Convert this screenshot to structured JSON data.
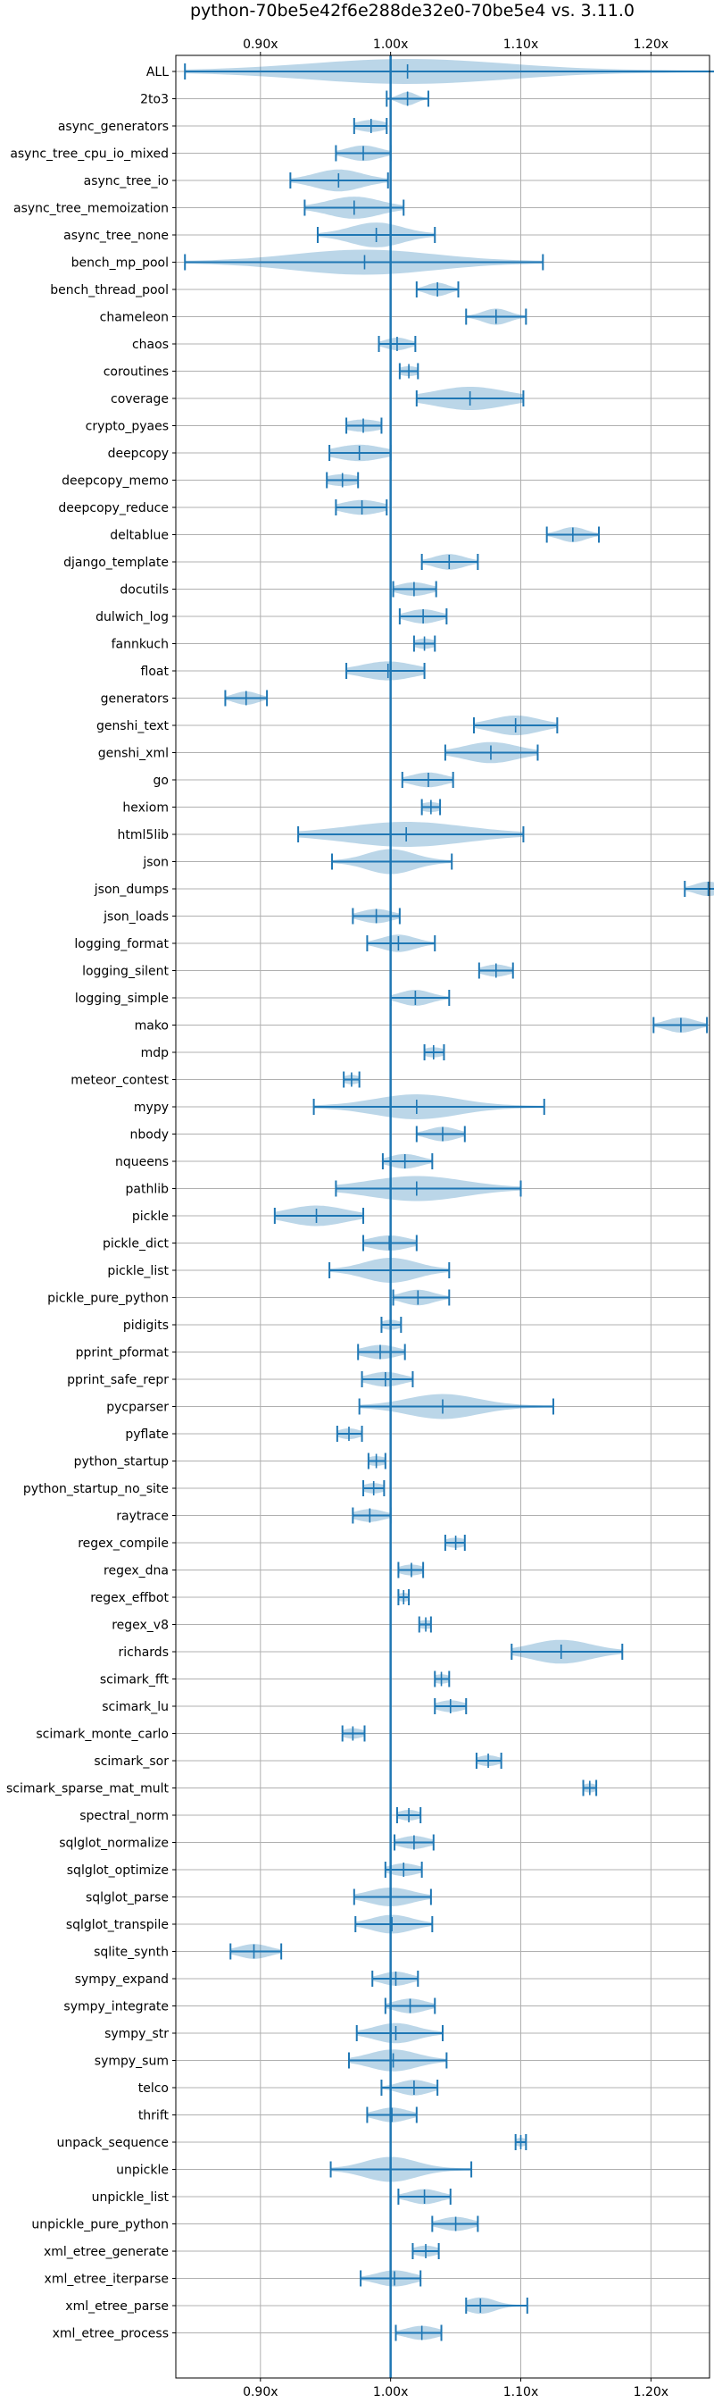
{
  "chart_data": {
    "type": "violin",
    "title": "python-70be5e42f6e288de32e0-70be5e4 vs. 3.11.0",
    "orientation": "horizontal",
    "xlim": [
      0.835,
      1.245
    ],
    "xticks": [
      0.9,
      1.0,
      1.1,
      1.2
    ],
    "xtick_labels": [
      "0.90x",
      "1.00x",
      "1.10x",
      "1.20x"
    ],
    "reference_line": 1.0,
    "grid": true,
    "colors": {
      "violin": "#1f77b4",
      "line": "#1f77b4",
      "grid": "#b0b0b0"
    },
    "series": [
      {
        "name": "ALL",
        "min": 0.842,
        "max": 1.262,
        "mean": 1.013,
        "width": 0.014
      },
      {
        "name": "2to3",
        "min": 0.997,
        "max": 1.029,
        "mean": 1.013,
        "width": 0.007
      },
      {
        "name": "async_generators",
        "min": 0.972,
        "max": 0.997,
        "mean": 0.985,
        "width": 0.012
      },
      {
        "name": "async_tree_cpu_io_mixed",
        "min": 0.958,
        "max": 1.0,
        "mean": 0.979,
        "width": 0.014
      },
      {
        "name": "async_tree_io",
        "min": 0.923,
        "max": 0.998,
        "mean": 0.96,
        "width": 0.02
      },
      {
        "name": "async_tree_memoization",
        "min": 0.934,
        "max": 1.01,
        "mean": 0.972,
        "width": 0.022
      },
      {
        "name": "async_tree_none",
        "min": 0.944,
        "max": 1.034,
        "mean": 0.989,
        "width": 0.022
      },
      {
        "name": "bench_mp_pool",
        "min": 0.842,
        "max": 1.117,
        "mean": 0.98,
        "width": 0.06
      },
      {
        "name": "bench_thread_pool",
        "min": 1.02,
        "max": 1.052,
        "mean": 1.036,
        "width": 0.009
      },
      {
        "name": "chameleon",
        "min": 1.058,
        "max": 1.104,
        "mean": 1.081,
        "width": 0.011
      },
      {
        "name": "chaos",
        "min": 0.991,
        "max": 1.019,
        "mean": 1.005,
        "width": 0.01
      },
      {
        "name": "coroutines",
        "min": 1.007,
        "max": 1.021,
        "mean": 1.014,
        "width": 0.009
      },
      {
        "name": "coverage",
        "min": 1.02,
        "max": 1.102,
        "mean": 1.061,
        "width": 0.03
      },
      {
        "name": "crypto_pyaes",
        "min": 0.966,
        "max": 0.993,
        "mean": 0.979,
        "width": 0.015
      },
      {
        "name": "deepcopy",
        "min": 0.953,
        "max": 1.0,
        "mean": 0.976,
        "width": 0.02
      },
      {
        "name": "deepcopy_memo",
        "min": 0.951,
        "max": 0.975,
        "mean": 0.963,
        "width": 0.014
      },
      {
        "name": "deepcopy_reduce",
        "min": 0.958,
        "max": 0.997,
        "mean": 0.978,
        "width": 0.016
      },
      {
        "name": "deltablue",
        "min": 1.12,
        "max": 1.16,
        "mean": 1.14,
        "width": 0.011
      },
      {
        "name": "django_template",
        "min": 1.024,
        "max": 1.067,
        "mean": 1.045,
        "width": 0.013
      },
      {
        "name": "docutils",
        "min": 1.002,
        "max": 1.035,
        "mean": 1.018,
        "width": 0.013
      },
      {
        "name": "dulwich_log",
        "min": 1.007,
        "max": 1.043,
        "mean": 1.025,
        "width": 0.013
      },
      {
        "name": "fannkuch",
        "min": 1.018,
        "max": 1.034,
        "mean": 1.026,
        "width": 0.009
      },
      {
        "name": "float",
        "min": 0.966,
        "max": 1.026,
        "mean": 0.998,
        "width": 0.022
      },
      {
        "name": "generators",
        "min": 0.873,
        "max": 0.905,
        "mean": 0.889,
        "width": 0.01
      },
      {
        "name": "genshi_text",
        "min": 1.064,
        "max": 1.128,
        "mean": 1.096,
        "width": 0.02
      },
      {
        "name": "genshi_xml",
        "min": 1.042,
        "max": 1.113,
        "mean": 1.077,
        "width": 0.022
      },
      {
        "name": "go",
        "min": 1.009,
        "max": 1.048,
        "mean": 1.029,
        "width": 0.014
      },
      {
        "name": "hexiom",
        "min": 1.024,
        "max": 1.038,
        "mean": 1.031,
        "width": 0.009
      },
      {
        "name": "html5lib",
        "min": 0.929,
        "max": 1.102,
        "mean": 1.012,
        "width": 0.05
      },
      {
        "name": "json",
        "min": 0.955,
        "max": 1.047,
        "mean": 1.0,
        "width": 0.02
      },
      {
        "name": "json_dumps",
        "min": 1.226,
        "max": 1.263,
        "mean": 1.244,
        "width": 0.011
      },
      {
        "name": "json_loads",
        "min": 0.971,
        "max": 1.007,
        "mean": 0.989,
        "width": 0.013
      },
      {
        "name": "logging_format",
        "min": 0.982,
        "max": 1.034,
        "mean": 1.006,
        "width": 0.014
      },
      {
        "name": "logging_silent",
        "min": 1.068,
        "max": 1.094,
        "mean": 1.081,
        "width": 0.011
      },
      {
        "name": "logging_simple",
        "min": 1.0,
        "max": 1.045,
        "mean": 1.019,
        "width": 0.013
      },
      {
        "name": "mako",
        "min": 1.202,
        "max": 1.243,
        "mean": 1.223,
        "width": 0.012
      },
      {
        "name": "mdp",
        "min": 1.026,
        "max": 1.041,
        "mean": 1.033,
        "width": 0.009
      },
      {
        "name": "meteor_contest",
        "min": 0.964,
        "max": 0.976,
        "mean": 0.97,
        "width": 0.007
      },
      {
        "name": "mypy",
        "min": 0.941,
        "max": 1.118,
        "mean": 1.02,
        "width": 0.035
      },
      {
        "name": "nbody",
        "min": 1.02,
        "max": 1.057,
        "mean": 1.04,
        "width": 0.012
      },
      {
        "name": "nqueens",
        "min": 0.994,
        "max": 1.032,
        "mean": 1.011,
        "width": 0.013
      },
      {
        "name": "pathlib",
        "min": 0.958,
        "max": 1.1,
        "mean": 1.02,
        "width": 0.04
      },
      {
        "name": "pickle",
        "min": 0.911,
        "max": 0.979,
        "mean": 0.943,
        "width": 0.024
      },
      {
        "name": "pickle_dict",
        "min": 0.979,
        "max": 1.02,
        "mean": 0.999,
        "width": 0.016
      },
      {
        "name": "pickle_list",
        "min": 0.953,
        "max": 1.045,
        "mean": 1.0,
        "width": 0.022
      },
      {
        "name": "pickle_pure_python",
        "min": 1.002,
        "max": 1.045,
        "mean": 1.021,
        "width": 0.013
      },
      {
        "name": "pidigits",
        "min": 0.993,
        "max": 1.008,
        "mean": 1.0,
        "width": 0.008
      },
      {
        "name": "pprint_pformat",
        "min": 0.975,
        "max": 1.011,
        "mean": 0.992,
        "width": 0.014
      },
      {
        "name": "pprint_safe_repr",
        "min": 0.978,
        "max": 1.017,
        "mean": 0.996,
        "width": 0.014
      },
      {
        "name": "pycparser",
        "min": 0.976,
        "max": 1.125,
        "mean": 1.04,
        "width": 0.025
      },
      {
        "name": "pyflate",
        "min": 0.959,
        "max": 0.978,
        "mean": 0.968,
        "width": 0.009
      },
      {
        "name": "python_startup",
        "min": 0.983,
        "max": 0.996,
        "mean": 0.989,
        "width": 0.009
      },
      {
        "name": "python_startup_no_site",
        "min": 0.979,
        "max": 0.995,
        "mean": 0.987,
        "width": 0.009
      },
      {
        "name": "raytrace",
        "min": 0.971,
        "max": 1.0,
        "mean": 0.984,
        "width": 0.012
      },
      {
        "name": "regex_compile",
        "min": 1.042,
        "max": 1.057,
        "mean": 1.05,
        "width": 0.009
      },
      {
        "name": "regex_dna",
        "min": 1.006,
        "max": 1.025,
        "mean": 1.016,
        "width": 0.01
      },
      {
        "name": "regex_effbot",
        "min": 1.006,
        "max": 1.014,
        "mean": 1.01,
        "width": 0.006
      },
      {
        "name": "regex_v8",
        "min": 1.022,
        "max": 1.031,
        "mean": 1.027,
        "width": 0.007
      },
      {
        "name": "richards",
        "min": 1.093,
        "max": 1.178,
        "mean": 1.131,
        "width": 0.025
      },
      {
        "name": "scimark_fft",
        "min": 1.034,
        "max": 1.045,
        "mean": 1.039,
        "width": 0.008
      },
      {
        "name": "scimark_lu",
        "min": 1.034,
        "max": 1.058,
        "mean": 1.046,
        "width": 0.011
      },
      {
        "name": "scimark_monte_carlo",
        "min": 0.963,
        "max": 0.98,
        "mean": 0.971,
        "width": 0.009
      },
      {
        "name": "scimark_sor",
        "min": 1.066,
        "max": 1.085,
        "mean": 1.075,
        "width": 0.009
      },
      {
        "name": "scimark_sparse_mat_mult",
        "min": 1.148,
        "max": 1.158,
        "mean": 1.153,
        "width": 0.006
      },
      {
        "name": "spectral_norm",
        "min": 1.005,
        "max": 1.023,
        "mean": 1.014,
        "width": 0.009
      },
      {
        "name": "sqlglot_normalize",
        "min": 1.003,
        "max": 1.033,
        "mean": 1.018,
        "width": 0.012
      },
      {
        "name": "sqlglot_optimize",
        "min": 0.996,
        "max": 1.024,
        "mean": 1.01,
        "width": 0.012
      },
      {
        "name": "sqlglot_parse",
        "min": 0.972,
        "max": 1.031,
        "mean": 1.0,
        "width": 0.018
      },
      {
        "name": "sqlglot_transpile",
        "min": 0.973,
        "max": 1.032,
        "mean": 1.001,
        "width": 0.017
      },
      {
        "name": "sqlite_synth",
        "min": 0.877,
        "max": 0.916,
        "mean": 0.895,
        "width": 0.013
      },
      {
        "name": "sympy_expand",
        "min": 0.986,
        "max": 1.021,
        "mean": 1.004,
        "width": 0.012
      },
      {
        "name": "sympy_integrate",
        "min": 0.996,
        "max": 1.034,
        "mean": 1.015,
        "width": 0.013
      },
      {
        "name": "sympy_str",
        "min": 0.974,
        "max": 1.04,
        "mean": 1.004,
        "width": 0.018
      },
      {
        "name": "sympy_sum",
        "min": 0.968,
        "max": 1.043,
        "mean": 1.002,
        "width": 0.02
      },
      {
        "name": "telco",
        "min": 0.993,
        "max": 1.036,
        "mean": 1.018,
        "width": 0.013
      },
      {
        "name": "thrift",
        "min": 0.982,
        "max": 1.02,
        "mean": 1.001,
        "width": 0.013
      },
      {
        "name": "unpack_sequence",
        "min": 1.096,
        "max": 1.104,
        "mean": 1.1,
        "width": 0.005
      },
      {
        "name": "unpickle",
        "min": 0.954,
        "max": 1.062,
        "mean": 1.0,
        "width": 0.02
      },
      {
        "name": "unpickle_list",
        "min": 1.006,
        "max": 1.046,
        "mean": 1.026,
        "width": 0.013
      },
      {
        "name": "unpickle_pure_python",
        "min": 1.032,
        "max": 1.067,
        "mean": 1.05,
        "width": 0.013
      },
      {
        "name": "xml_etree_generate",
        "min": 1.017,
        "max": 1.037,
        "mean": 1.027,
        "width": 0.01
      },
      {
        "name": "xml_etree_iterparse",
        "min": 0.977,
        "max": 1.023,
        "mean": 1.003,
        "width": 0.015
      },
      {
        "name": "xml_etree_parse",
        "min": 1.058,
        "max": 1.105,
        "mean": 1.069,
        "width": 0.012
      },
      {
        "name": "xml_etree_process",
        "min": 1.004,
        "max": 1.039,
        "mean": 1.024,
        "width": 0.013
      }
    ]
  }
}
